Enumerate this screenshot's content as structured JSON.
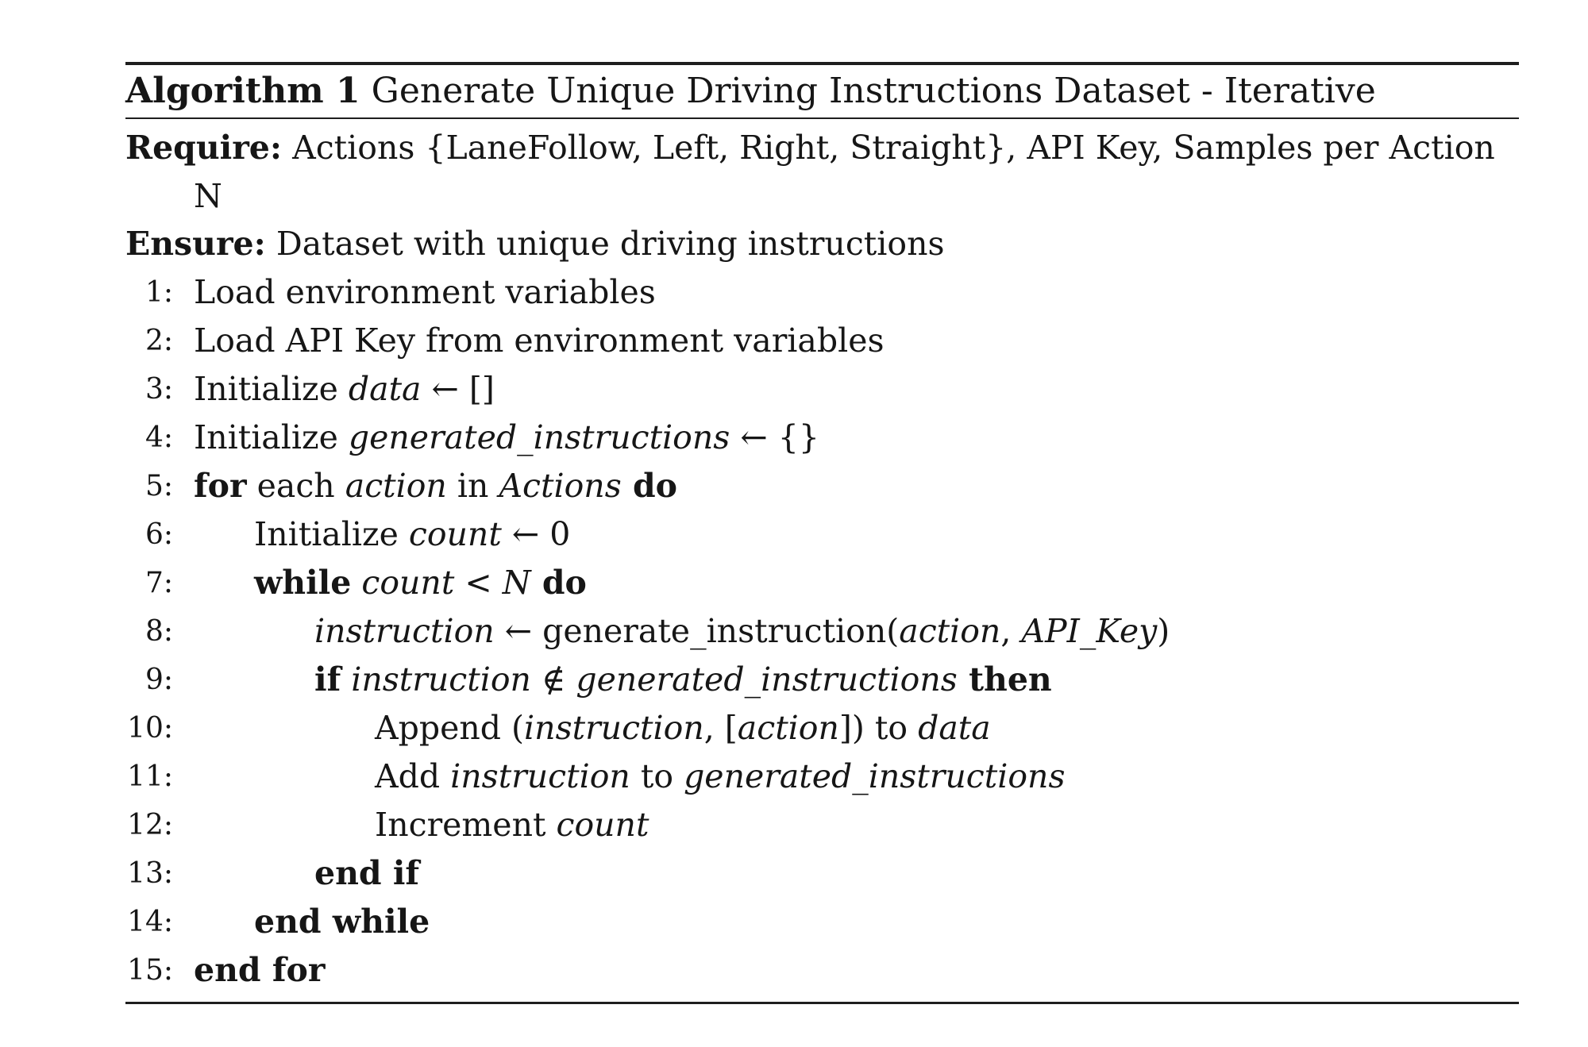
{
  "algorithm": {
    "label": "Algorithm 1",
    "title": "Generate Unique Driving Instructions Dataset - Iterative",
    "require_label": "Require:",
    "require_text": "Actions {LaneFollow, Left, Right, Straight}, API Key, Samples per Action N",
    "ensure_label": "Ensure:",
    "ensure_text": "Dataset with unique driving instructions",
    "lines": [
      {
        "no": "1:",
        "indent": 0,
        "segs": [
          {
            "t": "Load environment variables",
            "s": "n"
          }
        ]
      },
      {
        "no": "2:",
        "indent": 0,
        "segs": [
          {
            "t": "Load API Key from environment variables",
            "s": "n"
          }
        ]
      },
      {
        "no": "3:",
        "indent": 0,
        "segs": [
          {
            "t": "Initialize ",
            "s": "n"
          },
          {
            "t": "data",
            "s": "i"
          },
          {
            "t": " ← []",
            "s": "n"
          }
        ]
      },
      {
        "no": "4:",
        "indent": 0,
        "segs": [
          {
            "t": "Initialize ",
            "s": "n"
          },
          {
            "t": "generated_instructions",
            "s": "i"
          },
          {
            "t": " ← {}",
            "s": "n"
          }
        ]
      },
      {
        "no": "5:",
        "indent": 0,
        "segs": [
          {
            "t": "for",
            "s": "b"
          },
          {
            "t": " each ",
            "s": "n"
          },
          {
            "t": "action",
            "s": "i"
          },
          {
            "t": " in ",
            "s": "n"
          },
          {
            "t": "Actions",
            "s": "i"
          },
          {
            "t": " do",
            "s": "b"
          }
        ]
      },
      {
        "no": "6:",
        "indent": 1,
        "segs": [
          {
            "t": "Initialize ",
            "s": "n"
          },
          {
            "t": "count",
            "s": "i"
          },
          {
            "t": " ← 0",
            "s": "n"
          }
        ]
      },
      {
        "no": "7:",
        "indent": 1,
        "segs": [
          {
            "t": "while",
            "s": "b"
          },
          {
            "t": " count",
            "s": "i"
          },
          {
            "t": " < ",
            "s": "n"
          },
          {
            "t": "N",
            "s": "i"
          },
          {
            "t": " do",
            "s": "b"
          }
        ]
      },
      {
        "no": "8:",
        "indent": 2,
        "segs": [
          {
            "t": "instruction",
            "s": "i"
          },
          {
            "t": " ← generate_instruction(",
            "s": "n"
          },
          {
            "t": "action",
            "s": "i"
          },
          {
            "t": ", ",
            "s": "n"
          },
          {
            "t": "API_Key",
            "s": "i"
          },
          {
            "t": ")",
            "s": "n"
          }
        ]
      },
      {
        "no": "9:",
        "indent": 2,
        "segs": [
          {
            "t": "if",
            "s": "b"
          },
          {
            "t": " instruction",
            "s": "i"
          },
          {
            "t": " ∉ ",
            "s": "n"
          },
          {
            "t": "generated_instructions",
            "s": "i"
          },
          {
            "t": " then",
            "s": "b"
          }
        ]
      },
      {
        "no": "10:",
        "indent": 3,
        "segs": [
          {
            "t": "Append (",
            "s": "n"
          },
          {
            "t": "instruction",
            "s": "i"
          },
          {
            "t": ", [",
            "s": "n"
          },
          {
            "t": "action",
            "s": "i"
          },
          {
            "t": "]) to ",
            "s": "n"
          },
          {
            "t": "data",
            "s": "i"
          }
        ]
      },
      {
        "no": "11:",
        "indent": 3,
        "segs": [
          {
            "t": "Add ",
            "s": "n"
          },
          {
            "t": "instruction",
            "s": "i"
          },
          {
            "t": " to ",
            "s": "n"
          },
          {
            "t": "generated_instructions",
            "s": "i"
          }
        ]
      },
      {
        "no": "12:",
        "indent": 3,
        "segs": [
          {
            "t": "Increment ",
            "s": "n"
          },
          {
            "t": "count",
            "s": "i"
          }
        ]
      },
      {
        "no": "13:",
        "indent": 2,
        "segs": [
          {
            "t": "end if",
            "s": "b"
          }
        ]
      },
      {
        "no": "14:",
        "indent": 1,
        "segs": [
          {
            "t": "end while",
            "s": "b"
          }
        ]
      },
      {
        "no": "15:",
        "indent": 0,
        "segs": [
          {
            "t": "end for",
            "s": "b"
          }
        ]
      }
    ]
  }
}
